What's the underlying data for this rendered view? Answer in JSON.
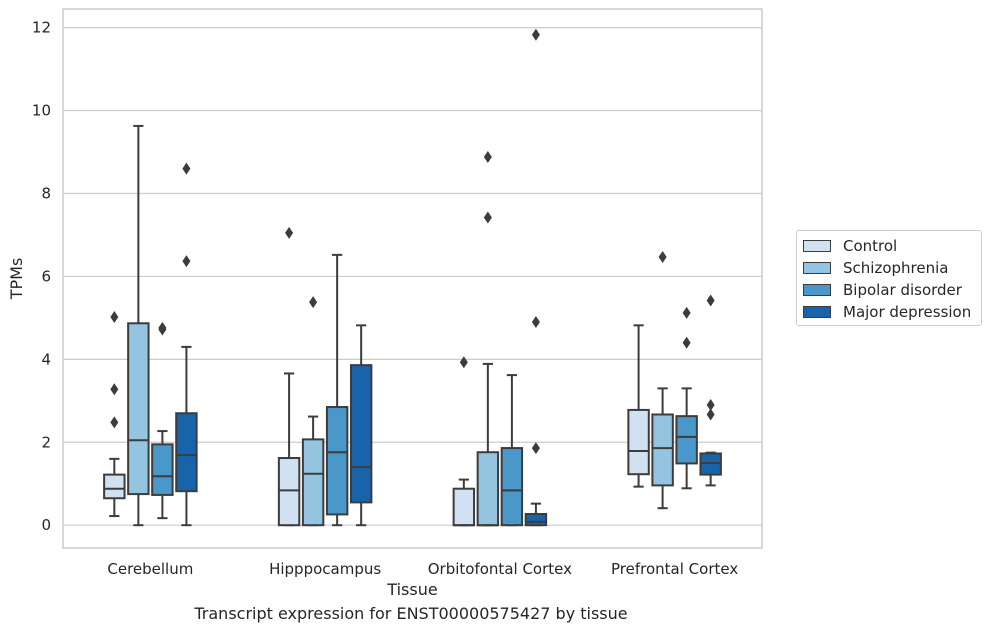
{
  "chart_data": {
    "type": "box",
    "title": "",
    "xlabel": "Tissue",
    "ylabel": "TPMs",
    "ylim": [
      -0.55,
      12.45
    ],
    "yticks": [
      0,
      2,
      4,
      6,
      8,
      10,
      12
    ],
    "grid": "horizontal",
    "legend_position": "right",
    "categories": [
      "Cerebellum",
      "Hipppocampus",
      "Orbitofontal Cortex",
      "Prefrontal Cortex"
    ],
    "series": [
      {
        "name": "Control",
        "color": "#d0e1f2",
        "boxes": [
          {
            "whislo": 0.22,
            "q1": 0.65,
            "med": 0.88,
            "q3": 1.22,
            "whishi": 1.6,
            "fliers": [
              2.48,
              3.28,
              5.02
            ]
          },
          {
            "whislo": 0.0,
            "q1": 0.0,
            "med": 0.84,
            "q3": 1.62,
            "whishi": 3.66,
            "fliers": [
              7.05
            ]
          },
          {
            "whislo": 0.0,
            "q1": 0.0,
            "med": 0.0,
            "q3": 0.88,
            "whishi": 1.1,
            "fliers": [
              3.93
            ]
          },
          {
            "whislo": 0.93,
            "q1": 1.23,
            "med": 1.79,
            "q3": 2.78,
            "whishi": 4.82,
            "fliers": []
          }
        ]
      },
      {
        "name": "Schizophrenia",
        "color": "#94c4df",
        "boxes": [
          {
            "whislo": 0.0,
            "q1": 0.75,
            "med": 2.05,
            "q3": 4.87,
            "whishi": 9.63,
            "fliers": []
          },
          {
            "whislo": 0.0,
            "q1": 0.0,
            "med": 1.24,
            "q3": 2.07,
            "whishi": 2.62,
            "fliers": [
              5.38
            ]
          },
          {
            "whislo": 0.0,
            "q1": 0.0,
            "med": 0.0,
            "q3": 1.76,
            "whishi": 3.89,
            "fliers": [
              7.42,
              8.88
            ]
          },
          {
            "whislo": 0.41,
            "q1": 0.96,
            "med": 1.86,
            "q3": 2.67,
            "whishi": 3.3,
            "fliers": [
              6.47
            ]
          }
        ]
      },
      {
        "name": "Bipolar disorder",
        "color": "#4a98c9",
        "boxes": [
          {
            "whislo": 0.17,
            "q1": 0.73,
            "med": 1.18,
            "q3": 1.95,
            "whishi": 2.27,
            "fliers": [
              4.72,
              4.76
            ]
          },
          {
            "whislo": 0.0,
            "q1": 0.26,
            "med": 1.76,
            "q3": 2.85,
            "whishi": 6.52,
            "fliers": []
          },
          {
            "whislo": 0.0,
            "q1": 0.0,
            "med": 0.84,
            "q3": 1.86,
            "whishi": 3.62,
            "fliers": []
          },
          {
            "whislo": 0.89,
            "q1": 1.49,
            "med": 2.13,
            "q3": 2.63,
            "whishi": 3.3,
            "fliers": [
              4.4,
              5.12
            ]
          }
        ]
      },
      {
        "name": "Major depression",
        "color": "#1764ab",
        "boxes": [
          {
            "whislo": 0.0,
            "q1": 0.82,
            "med": 1.69,
            "q3": 2.7,
            "whishi": 4.3,
            "fliers": [
              6.37,
              8.6
            ]
          },
          {
            "whislo": 0.0,
            "q1": 0.55,
            "med": 1.4,
            "q3": 3.86,
            "whishi": 4.82,
            "fliers": []
          },
          {
            "whislo": 0.0,
            "q1": 0.0,
            "med": 0.08,
            "q3": 0.27,
            "whishi": 0.52,
            "fliers": [
              1.86,
              4.9,
              11.83
            ]
          },
          {
            "whislo": 0.96,
            "q1": 1.22,
            "med": 1.5,
            "q3": 1.73,
            "whishi": 1.75,
            "fliers": [
              2.67,
              2.9,
              5.42
            ]
          }
        ]
      }
    ]
  },
  "caption": "Transcript expression for ENST00000575427 by tissue",
  "colors": {
    "grid": "#cccccc",
    "axes_edge": "#cccccc",
    "box_edge": "#3c3c3c"
  }
}
